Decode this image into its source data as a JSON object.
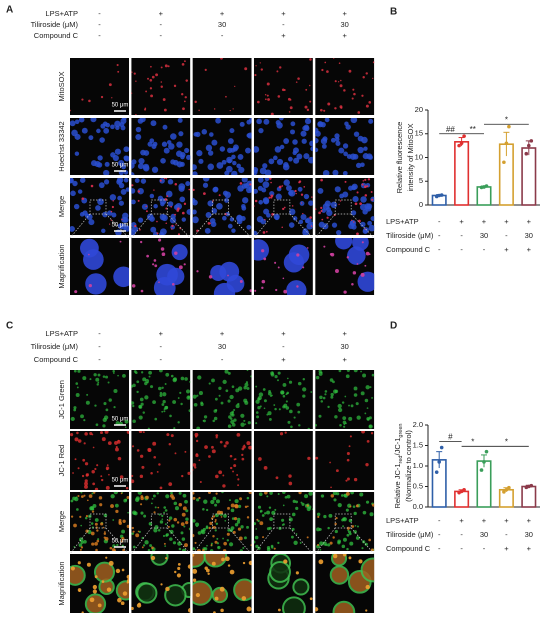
{
  "figure_a": {
    "label": "A",
    "conditions": [
      {
        "name": "LPS+ATP",
        "levels": [
          "-",
          "+",
          "+",
          "+",
          "+"
        ]
      },
      {
        "name": "Tiliroside (μM)",
        "levels": [
          "-",
          "-",
          "30",
          "-",
          "30"
        ]
      },
      {
        "name": "Compound C",
        "levels": [
          "-",
          "-",
          "-",
          "+",
          "+"
        ]
      }
    ],
    "rows": [
      {
        "name": "MitoSOX",
        "color": "#d0303a"
      },
      {
        "name": "Hoechst 33342",
        "color": "#3a9fd8"
      },
      {
        "name": "Merge",
        "color": "#8a3aa0"
      },
      {
        "name": "Magnification",
        "color": "#8a3aa0"
      }
    ],
    "scale_bar": "50 μm"
  },
  "figure_c": {
    "label": "C",
    "conditions": [
      {
        "name": "LPS+ATP",
        "levels": [
          "-",
          "+",
          "+",
          "+",
          "+"
        ]
      },
      {
        "name": "Tiliroside (μM)",
        "levels": [
          "-",
          "-",
          "30",
          "-",
          "30"
        ]
      },
      {
        "name": "Compound C",
        "levels": [
          "-",
          "-",
          "-",
          "+",
          "+"
        ]
      }
    ],
    "rows": [
      {
        "name": "JC-1 Green",
        "color": "#2e8b4a"
      },
      {
        "name": "JC-1 Red",
        "color": "#d03040"
      },
      {
        "name": "Merge",
        "color": "#d0a030"
      },
      {
        "name": "Magnification",
        "color": "#8040a0"
      }
    ],
    "scale_bar": "50 μm"
  },
  "chart_data": [
    {
      "type": "bar",
      "label": "B",
      "y_label": [
        [
          {
            "text": "Relative fluorescence"
          }
        ],
        [
          {
            "text": "intensity of MitoSOX"
          }
        ]
      ],
      "ylim": [
        0,
        20
      ],
      "yticks": [
        0,
        5,
        10,
        15,
        20
      ],
      "values": [
        2,
        13.3,
        3.8,
        12.8,
        12
      ],
      "errors": [
        0.2,
        0.9,
        0.2,
        2.5,
        1.5
      ],
      "points": [
        [
          1.8,
          2,
          2.1
        ],
        [
          12.5,
          13,
          14.5
        ],
        [
          3.7,
          3.8,
          4
        ],
        [
          9,
          13,
          16.5
        ],
        [
          10.8,
          12.5,
          13.5
        ]
      ],
      "colors": [
        "#2f5fa8",
        "#e03030",
        "#3a9e5a",
        "#d4a030",
        "#8b3a4a"
      ],
      "conditions": [
        {
          "name": "LPS+ATP",
          "levels": [
            "-",
            "+",
            "+",
            "+",
            "+"
          ]
        },
        {
          "name": "Tiliroside (μM)",
          "levels": [
            "-",
            "-",
            "30",
            "-",
            "30"
          ]
        },
        {
          "name": "Compound C",
          "levels": [
            "-",
            "-",
            "-",
            "+",
            "+"
          ]
        }
      ],
      "annotations": [
        "##",
        "**",
        "*"
      ]
    },
    {
      "type": "bar",
      "label": "D",
      "y_label": [
        [
          {
            "text": "Relative JC-1"
          },
          {
            "text": "red",
            "sub": true
          },
          {
            "text": "/JC-1"
          },
          {
            "text": "green",
            "sub": true
          }
        ],
        [
          {
            "text": "(Normalize to control)"
          }
        ]
      ],
      "ylim": [
        0,
        2
      ],
      "yticks": [
        {
          "value": 0,
          "label": "0.0"
        },
        {
          "value": 0.5,
          "label": "0.5"
        },
        {
          "value": 1,
          "label": "1.0"
        },
        {
          "value": 1.5,
          "label": "1.5"
        },
        {
          "value": 2,
          "label": "2.0"
        }
      ],
      "values": [
        1.15,
        0.38,
        1.12,
        0.42,
        0.5
      ],
      "errors": [
        0.2,
        0.04,
        0.15,
        0.05,
        0.03
      ],
      "points": [
        [
          0.85,
          1.1,
          1.45
        ],
        [
          0.35,
          0.38,
          0.42
        ],
        [
          0.9,
          1.1,
          1.35
        ],
        [
          0.37,
          0.42,
          0.47
        ],
        [
          0.48,
          0.5,
          0.52
        ]
      ],
      "colors": [
        "#2f5fa8",
        "#e03030",
        "#3a9e5a",
        "#d4a030",
        "#8b3a4a"
      ],
      "conditions": [
        {
          "name": "LPS+ATP",
          "levels": [
            "-",
            "+",
            "+",
            "+",
            "+"
          ]
        },
        {
          "name": "Tiliroside (μM)",
          "levels": [
            "-",
            "-",
            "30",
            "-",
            "30"
          ]
        },
        {
          "name": "Compound C",
          "levels": [
            "-",
            "-",
            "-",
            "+",
            "+"
          ]
        }
      ],
      "annotations": [
        "#",
        "*",
        "*"
      ]
    }
  ]
}
